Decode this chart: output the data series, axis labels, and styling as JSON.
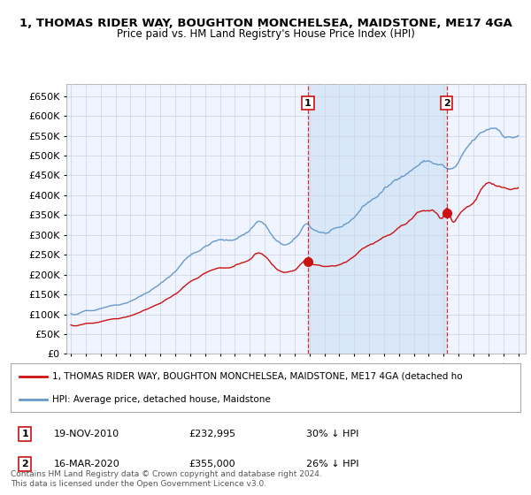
{
  "title": "1, THOMAS RIDER WAY, BOUGHTON MONCHELSEA, MAIDSTONE, ME17 4GA",
  "subtitle": "Price paid vs. HM Land Registry's House Price Index (HPI)",
  "background_color": "#ffffff",
  "plot_bg_color": "#f0f4ff",
  "grid_color": "#d0d8e8",
  "hpi_color": "#6699cc",
  "price_color": "#cc1111",
  "marker_color": "#cc1111",
  "shade_color": "#d8e8f8",
  "legend_label_price": "1, THOMAS RIDER WAY, BOUGHTON MONCHELSEA, MAIDSTONE, ME17 4GA (detached ho",
  "legend_label_hpi": "HPI: Average price, detached house, Maidstone",
  "annotation1_label": "1",
  "annotation1_date": "19-NOV-2010",
  "annotation1_price": "£232,995",
  "annotation1_hpi": "30% ↓ HPI",
  "annotation2_label": "2",
  "annotation2_date": "16-MAR-2020",
  "annotation2_price": "£355,000",
  "annotation2_hpi": "26% ↓ HPI",
  "footer": "Contains HM Land Registry data © Crown copyright and database right 2024.\nThis data is licensed under the Open Government Licence v3.0.",
  "ylim": [
    0,
    680000
  ],
  "yticks": [
    0,
    50000,
    100000,
    150000,
    200000,
    250000,
    300000,
    350000,
    400000,
    450000,
    500000,
    550000,
    600000,
    650000
  ],
  "sale1_x": 2010.9,
  "sale1_y": 232995,
  "sale2_x": 2020.2,
  "sale2_y": 355000,
  "xlim_left": 1994.7,
  "xlim_right": 2025.5
}
